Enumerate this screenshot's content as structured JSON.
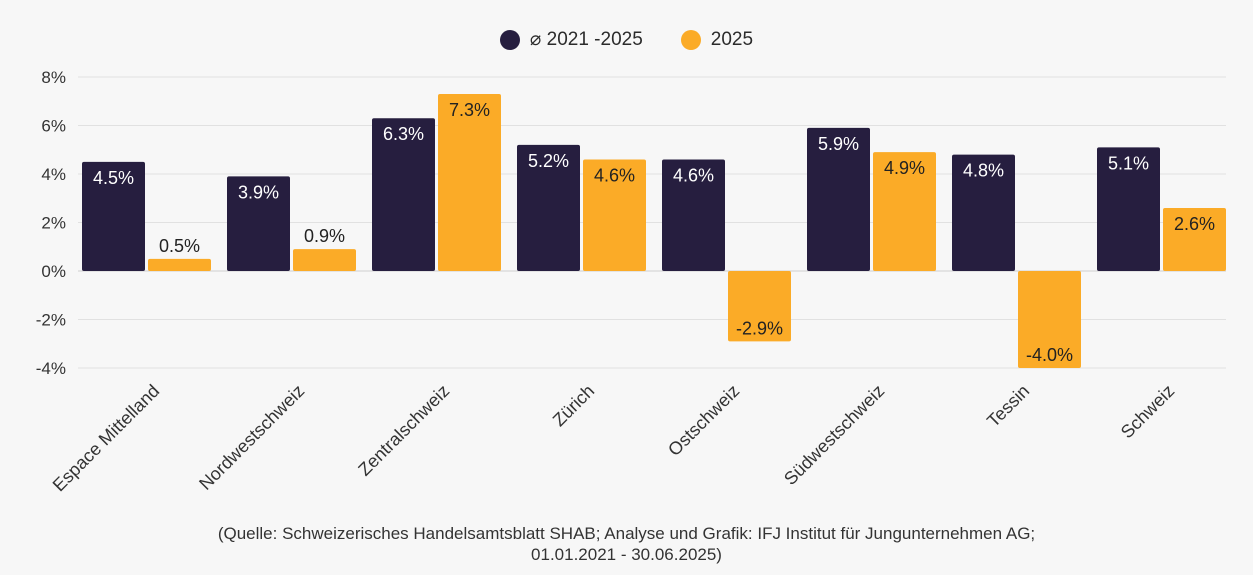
{
  "legend": {
    "series1": "⌀ 2021 -2025",
    "series2": "2025"
  },
  "source": {
    "line1": "(Quelle: Schweizerisches Handelsamtsblatt SHAB; Analyse und Grafik: IFJ Institut für Jungunternehmen AG;",
    "line2": "01.01.2021 - 30.06.2025)"
  },
  "chart_data": {
    "type": "bar",
    "categories": [
      "Espace Mittelland",
      "Nordwestschweiz",
      "Zentralschweiz",
      "Zürich",
      "Ostschweiz",
      "Südwestschweiz",
      "Tessin",
      "Schweiz"
    ],
    "series": [
      {
        "name": "⌀ 2021 -2025",
        "color": "#261e3f",
        "values": [
          4.5,
          3.9,
          6.3,
          5.2,
          4.6,
          5.9,
          4.8,
          5.1
        ],
        "labels": [
          "4.5%",
          "3.9%",
          "6.3%",
          "5.2%",
          "4.6%",
          "5.9%",
          "4.8%",
          "5.1%"
        ]
      },
      {
        "name": "2025",
        "color": "#fbab27",
        "values": [
          0.5,
          0.9,
          7.3,
          4.6,
          -2.9,
          4.9,
          -4.0,
          2.6
        ],
        "labels": [
          "0.5%",
          "0.9%",
          "7.3%",
          "4.6%",
          "-2.9%",
          "4.9%",
          "-4.0%",
          "2.6%"
        ]
      }
    ],
    "yticks": [
      "8%",
      "6%",
      "4%",
      "2%",
      "0%",
      "-2%",
      "-4%"
    ],
    "ytick_values": [
      8,
      6,
      4,
      2,
      0,
      -2,
      -4
    ],
    "ylim": [
      -4,
      8
    ],
    "grid": true,
    "legend_position": "top-center"
  }
}
